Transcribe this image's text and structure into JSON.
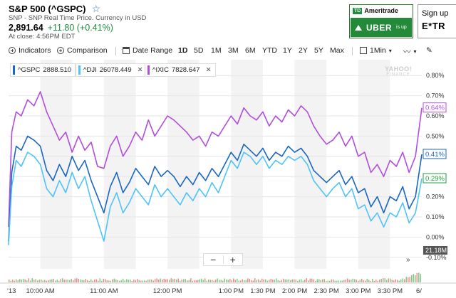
{
  "header": {
    "title": "S&P 500 (^GSPC)",
    "subtitle": "SNP - SNP Real Time Price. Currency in USD",
    "price": "2,891.64",
    "change": "+11.80 (+0.41%)",
    "close_info": "At close: 4:56PM EDT"
  },
  "ads": {
    "td_brand": "Ameritrade",
    "td_logo": "TD",
    "td_ticker": "UBER",
    "td_small": "is up",
    "etrade_line1": "Sign up",
    "etrade_line2": "E*TR"
  },
  "toolbar": {
    "indicators": "Indicators",
    "comparison": "Comparison",
    "date_range": "Date Range",
    "ranges": [
      "1D",
      "5D",
      "1M",
      "3M",
      "6M",
      "YTD",
      "1Y",
      "2Y",
      "5Y",
      "Max"
    ],
    "active_range": "1D",
    "interval": "1Min"
  },
  "legend": [
    {
      "symbol": "^GSPC",
      "value": "2888.510",
      "color": "#1a66c2"
    },
    {
      "symbol": "^DJI",
      "value": "26078.449",
      "color": "#4fc3f7"
    },
    {
      "symbol": "^IXIC",
      "value": "7828.647",
      "color": "#b24dde"
    }
  ],
  "zoom": {
    "minus": "−",
    "plus": "+"
  },
  "expand_icon": "»",
  "watermark": {
    "line1": "YAHOO!",
    "line2": "FINANCE"
  },
  "volume_label": "21.18M",
  "badges": [
    {
      "text": "0.64%",
      "color": "#b24dde"
    },
    {
      "text": "0.41%",
      "color": "#1a66c2"
    },
    {
      "text": "0.29%",
      "color": "#1e9e3e"
    }
  ],
  "chart_data": {
    "type": "line",
    "y_unit": "%",
    "ylim": [
      -0.15,
      0.85
    ],
    "yticks": [
      "0.80%",
      "0.70%",
      "0.60%",
      "0.50%",
      "0.40%",
      "0.30%",
      "0.20%",
      "0.10%",
      "0.00%",
      "-0.10%"
    ],
    "ytick_values": [
      0.8,
      0.7,
      0.6,
      0.5,
      0.4,
      0.3,
      0.2,
      0.1,
      0.0,
      -0.1
    ],
    "xticks": [
      "'13",
      "10:00 AM",
      "11:00 AM",
      "12:00 PM",
      "1:00 PM",
      "1:30 PM",
      "2:00 PM",
      "2:30 PM",
      "3:00 PM",
      "3:30 PM",
      "6/"
    ],
    "xtick_times": [
      9.5,
      10.0,
      11.0,
      12.0,
      13.0,
      13.5,
      14.0,
      14.5,
      15.0,
      15.5,
      16.0
    ],
    "xlim": [
      9.5,
      16.0
    ],
    "grid": true,
    "series": [
      {
        "name": "^IXIC",
        "color": "#b24dde",
        "x": [
          9.5,
          9.55,
          9.62,
          9.7,
          9.8,
          9.9,
          10.0,
          10.1,
          10.2,
          10.3,
          10.4,
          10.5,
          10.6,
          10.7,
          10.8,
          10.9,
          11.0,
          11.1,
          11.2,
          11.3,
          11.4,
          11.5,
          11.6,
          11.7,
          11.8,
          11.9,
          12.0,
          12.1,
          12.2,
          12.3,
          12.4,
          12.5,
          12.6,
          12.7,
          12.8,
          12.9,
          13.0,
          13.1,
          13.2,
          13.3,
          13.4,
          13.5,
          13.6,
          13.7,
          13.8,
          13.9,
          14.0,
          14.1,
          14.2,
          14.3,
          14.4,
          14.5,
          14.6,
          14.7,
          14.8,
          14.9,
          15.0,
          15.1,
          15.2,
          15.3,
          15.4,
          15.5,
          15.6,
          15.7,
          15.8,
          15.9,
          16.0
        ],
        "y": [
          0.05,
          0.52,
          0.62,
          0.6,
          0.68,
          0.65,
          0.72,
          0.62,
          0.55,
          0.48,
          0.52,
          0.42,
          0.5,
          0.43,
          0.47,
          0.35,
          0.34,
          0.45,
          0.5,
          0.4,
          0.45,
          0.52,
          0.48,
          0.58,
          0.5,
          0.55,
          0.6,
          0.58,
          0.55,
          0.52,
          0.48,
          0.5,
          0.45,
          0.52,
          0.5,
          0.55,
          0.6,
          0.56,
          0.64,
          0.6,
          0.58,
          0.62,
          0.55,
          0.6,
          0.57,
          0.63,
          0.6,
          0.65,
          0.62,
          0.55,
          0.5,
          0.46,
          0.48,
          0.52,
          0.45,
          0.5,
          0.4,
          0.42,
          0.32,
          0.36,
          0.3,
          0.38,
          0.35,
          0.42,
          0.32,
          0.4,
          0.64
        ]
      },
      {
        "name": "^GSPC",
        "color": "#1a66c2",
        "x": [
          9.5,
          9.55,
          9.62,
          9.7,
          9.8,
          9.9,
          10.0,
          10.1,
          10.2,
          10.3,
          10.4,
          10.5,
          10.6,
          10.7,
          10.8,
          10.9,
          11.0,
          11.1,
          11.2,
          11.3,
          11.4,
          11.5,
          11.6,
          11.7,
          11.8,
          11.9,
          12.0,
          12.1,
          12.2,
          12.3,
          12.4,
          12.5,
          12.6,
          12.7,
          12.8,
          12.9,
          13.0,
          13.1,
          13.2,
          13.3,
          13.4,
          13.5,
          13.6,
          13.7,
          13.8,
          13.9,
          14.0,
          14.1,
          14.2,
          14.3,
          14.4,
          14.5,
          14.6,
          14.7,
          14.8,
          14.9,
          15.0,
          15.1,
          15.2,
          15.3,
          15.4,
          15.5,
          15.6,
          15.7,
          15.8,
          15.9,
          16.0
        ],
        "y": [
          -0.02,
          0.32,
          0.45,
          0.43,
          0.5,
          0.48,
          0.45,
          0.33,
          0.28,
          0.36,
          0.3,
          0.4,
          0.33,
          0.38,
          0.28,
          0.2,
          0.12,
          0.25,
          0.32,
          0.22,
          0.27,
          0.34,
          0.3,
          0.26,
          0.35,
          0.3,
          0.33,
          0.3,
          0.25,
          0.3,
          0.26,
          0.32,
          0.28,
          0.34,
          0.3,
          0.36,
          0.42,
          0.38,
          0.46,
          0.43,
          0.4,
          0.44,
          0.38,
          0.42,
          0.4,
          0.45,
          0.42,
          0.44,
          0.4,
          0.33,
          0.3,
          0.27,
          0.3,
          0.33,
          0.26,
          0.3,
          0.22,
          0.24,
          0.15,
          0.2,
          0.12,
          0.2,
          0.18,
          0.25,
          0.14,
          0.2,
          0.41
        ]
      },
      {
        "name": "^DJI",
        "color": "#4fc3f7",
        "x": [
          9.5,
          9.55,
          9.62,
          9.7,
          9.8,
          9.9,
          10.0,
          10.1,
          10.2,
          10.3,
          10.4,
          10.5,
          10.6,
          10.7,
          10.8,
          10.9,
          11.0,
          11.1,
          11.2,
          11.3,
          11.4,
          11.5,
          11.6,
          11.7,
          11.8,
          11.9,
          12.0,
          12.1,
          12.2,
          12.3,
          12.4,
          12.5,
          12.6,
          12.7,
          12.8,
          12.9,
          13.0,
          13.1,
          13.2,
          13.3,
          13.4,
          13.5,
          13.6,
          13.7,
          13.8,
          13.9,
          14.0,
          14.1,
          14.2,
          14.3,
          14.4,
          14.5,
          14.6,
          14.7,
          14.8,
          14.9,
          15.0,
          15.1,
          15.2,
          15.3,
          15.4,
          15.5,
          15.6,
          15.7,
          15.8,
          15.9,
          16.0
        ],
        "y": [
          -0.04,
          0.25,
          0.38,
          0.35,
          0.42,
          0.4,
          0.36,
          0.24,
          0.2,
          0.28,
          0.22,
          0.32,
          0.24,
          0.3,
          0.18,
          0.08,
          -0.02,
          0.15,
          0.22,
          0.12,
          0.17,
          0.24,
          0.2,
          0.16,
          0.26,
          0.2,
          0.24,
          0.2,
          0.16,
          0.22,
          0.18,
          0.24,
          0.2,
          0.27,
          0.22,
          0.3,
          0.38,
          0.34,
          0.42,
          0.4,
          0.36,
          0.4,
          0.34,
          0.38,
          0.36,
          0.4,
          0.38,
          0.4,
          0.36,
          0.28,
          0.24,
          0.2,
          0.24,
          0.27,
          0.2,
          0.24,
          0.14,
          0.16,
          0.08,
          0.12,
          0.05,
          0.12,
          0.1,
          0.17,
          0.07,
          0.12,
          0.29
        ]
      }
    ]
  }
}
